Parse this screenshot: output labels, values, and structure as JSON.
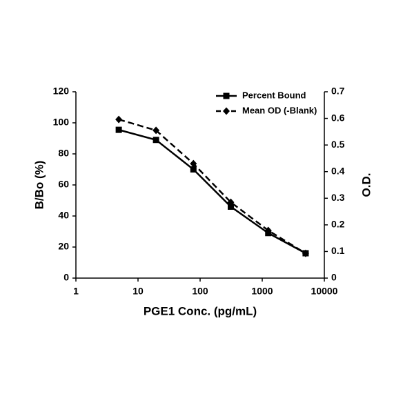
{
  "chart_data": {
    "type": "line",
    "x_label": "PGE1 Conc. (pg/mL)",
    "y_label": "B/Bo (%)",
    "y2_label": "O.D.",
    "x_scale": "log",
    "x": [
      4.9,
      19.5,
      78,
      312,
      1250,
      5000
    ],
    "series": [
      {
        "name": "Percent Bound",
        "color": "#000000",
        "marker": "square",
        "dashed": false,
        "values": [
          95.5,
          89,
          70,
          46,
          29,
          16
        ]
      },
      {
        "name": "Mean OD (-Blank)",
        "color": "#000000",
        "marker": "diamond",
        "dashed": true,
        "axis": "y2",
        "values": [
          0.596,
          0.555,
          0.43,
          0.285,
          0.179,
          0.093
        ]
      }
    ],
    "xlim": [
      1,
      10000
    ],
    "xticks": [
      1,
      10,
      100,
      1000,
      10000
    ],
    "ylim": [
      0,
      120
    ],
    "yticks": [
      0,
      20,
      40,
      60,
      80,
      100,
      120
    ],
    "y2lim": [
      0,
      0.7
    ],
    "y2ticks": [
      0,
      0.1,
      0.2,
      0.3,
      0.4,
      0.5,
      0.6,
      0.7
    ],
    "legend": "top-right",
    "grid": false
  }
}
